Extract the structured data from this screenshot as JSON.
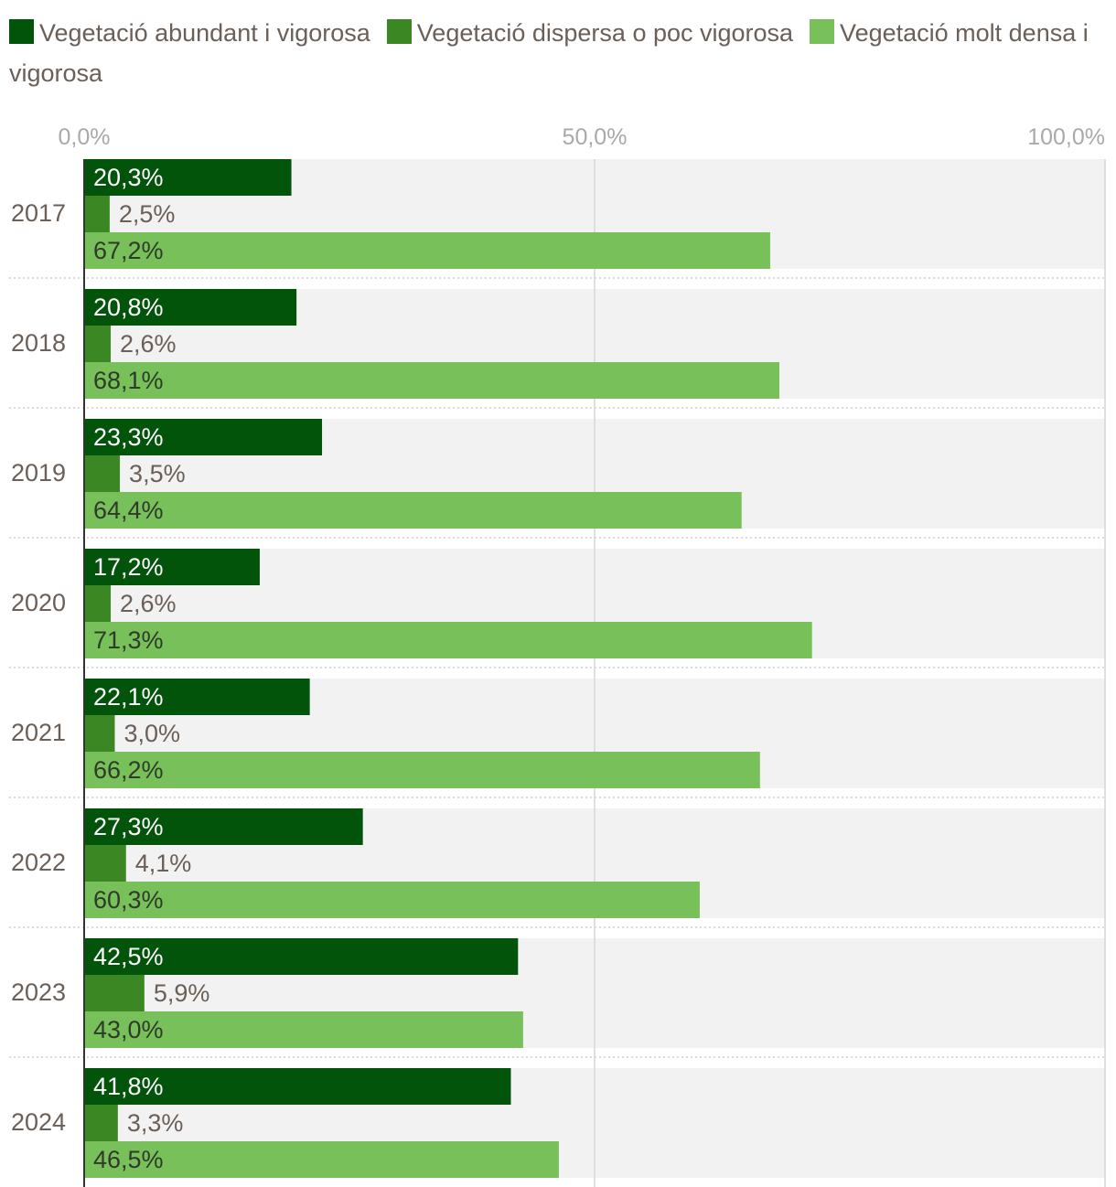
{
  "chart_data": {
    "type": "bar",
    "orientation": "horizontal",
    "categories": [
      "2017",
      "2018",
      "2019",
      "2020",
      "2021",
      "2022",
      "2023",
      "2024"
    ],
    "series": [
      {
        "name": "Vegetació abundant i vigorosa",
        "color": "#01540a",
        "values": [
          20.3,
          20.8,
          23.3,
          17.2,
          22.1,
          27.3,
          42.5,
          41.8
        ],
        "labels": [
          "20,3%",
          "20,8%",
          "23,3%",
          "17,2%",
          "22,1%",
          "27,3%",
          "42,5%",
          "41,8%"
        ]
      },
      {
        "name": "Vegetació dispersa o poc vigorosa",
        "color": "#3a8724",
        "values": [
          2.5,
          2.6,
          3.5,
          2.6,
          3.0,
          4.1,
          5.9,
          3.3
        ],
        "labels": [
          "2,5%",
          "2,6%",
          "3,5%",
          "2,6%",
          "3,0%",
          "4,1%",
          "5,9%",
          "3,3%"
        ]
      },
      {
        "name": "Vegetació molt densa i vigorosa",
        "color": "#78c15a",
        "values": [
          67.2,
          68.1,
          64.4,
          71.3,
          66.2,
          60.3,
          43.0,
          46.5
        ],
        "labels": [
          "67,2%",
          "68,1%",
          "64,4%",
          "71,3%",
          "66,2%",
          "60,3%",
          "43,0%",
          "46,5%"
        ]
      }
    ],
    "xlim": [
      0,
      100
    ],
    "ticks": [
      0,
      50,
      100
    ],
    "tick_labels": [
      "0,0%",
      "50,0%",
      "100,0%"
    ],
    "legend_position": "top",
    "grid": true
  }
}
